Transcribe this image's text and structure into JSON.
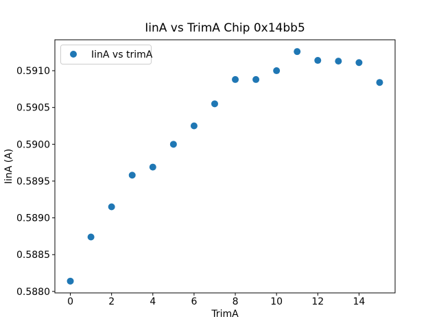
{
  "chart_data": {
    "type": "scatter",
    "title": "IinA vs TrimA Chip 0x14bb5",
    "xlabel": "TrimA",
    "ylabel": "IinA (A)",
    "legend": {
      "position": "upper left",
      "entries": [
        "IinA vs trimA"
      ]
    },
    "marker_color": "#1f77b4",
    "legend_border_color": "#cccccc",
    "x": [
      0,
      1,
      2,
      3,
      4,
      5,
      6,
      7,
      8,
      9,
      10,
      11,
      12,
      13,
      14,
      15
    ],
    "y": [
      0.58814,
      0.58874,
      0.58915,
      0.58958,
      0.58969,
      0.59,
      0.59025,
      0.59055,
      0.59088,
      0.59088,
      0.591,
      0.59126,
      0.59114,
      0.59113,
      0.59111,
      0.59084
    ],
    "xlim": [
      -0.75,
      15.75
    ],
    "ylim": [
      0.58798,
      0.59142
    ],
    "xticks": [
      0,
      2,
      4,
      6,
      8,
      10,
      12,
      14
    ],
    "xtick_labels": [
      "0",
      "2",
      "4",
      "6",
      "8",
      "10",
      "12",
      "14"
    ],
    "ytick_values": [
      0.588,
      0.5885,
      0.589,
      0.5895,
      0.59,
      0.5905,
      0.591
    ],
    "ytick_labels": [
      "0.5880",
      "0.5885",
      "0.5890",
      "0.5895",
      "0.5900",
      "0.5905",
      "0.5910"
    ],
    "grid": false,
    "background": "#ffffff"
  }
}
